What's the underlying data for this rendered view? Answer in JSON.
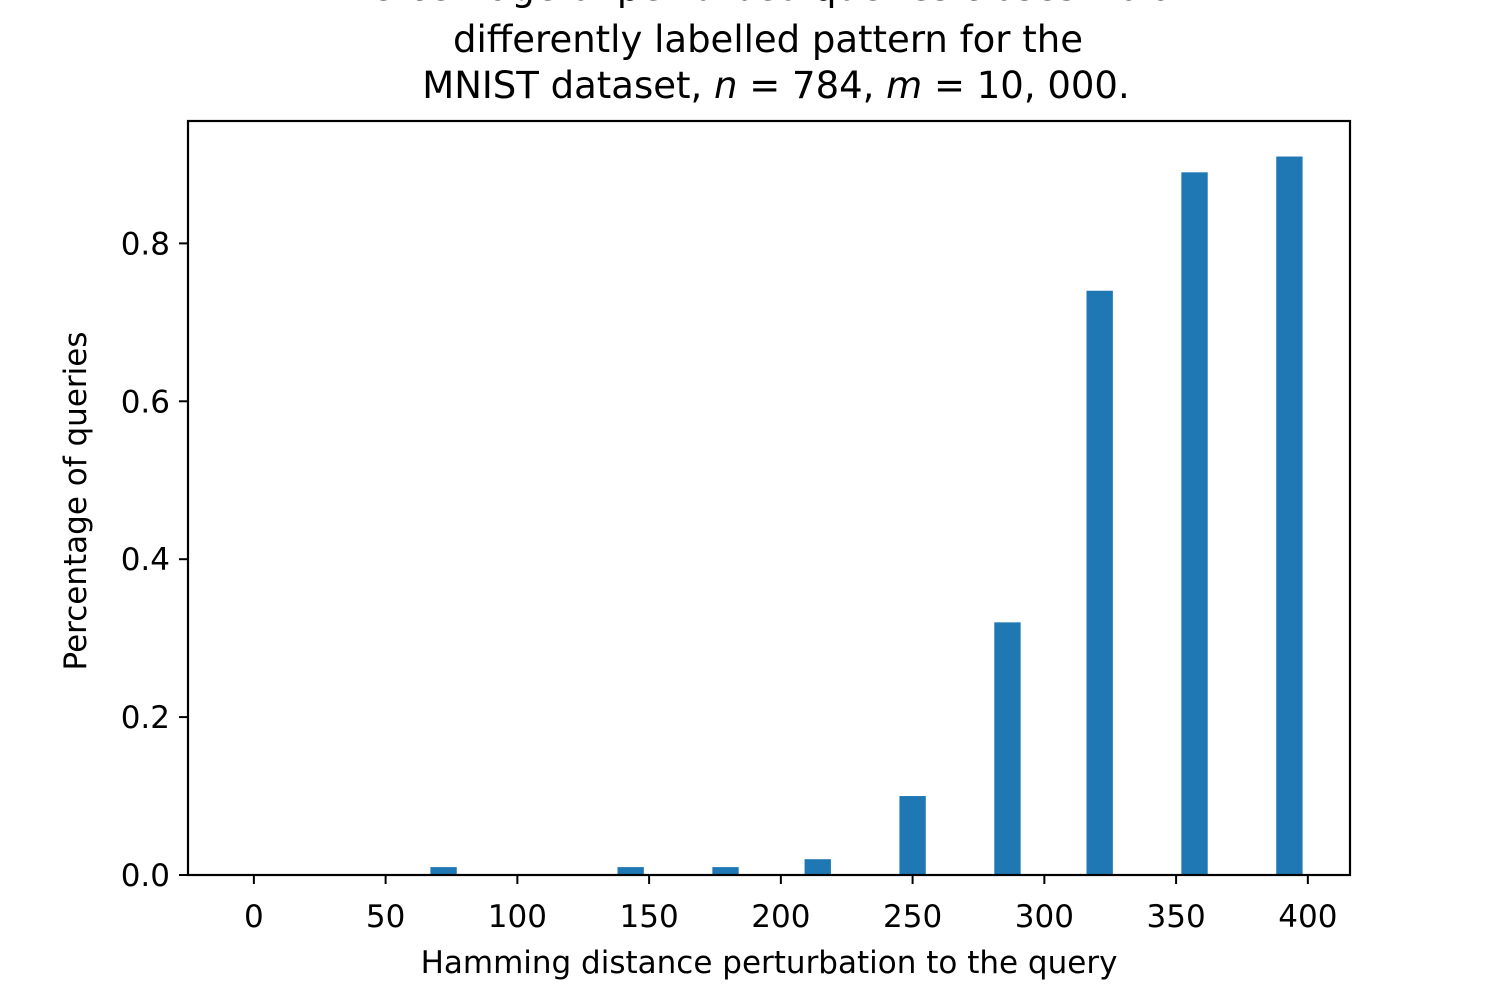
{
  "chart_data": {
    "type": "bar",
    "title_lines": [
      "Percentage of perturbed queries closest to a",
      "differently labelled pattern for the",
      "MNIST dataset, n = 784, m = 10, 000."
    ],
    "xlabel": "Hamming distance perturbation to the query",
    "ylabel": "Percentage of queries",
    "xlim": [
      -25,
      416
    ],
    "ylim": [
      0,
      0.955
    ],
    "xticks": [
      0,
      50,
      100,
      150,
      200,
      250,
      300,
      350,
      400
    ],
    "yticks": [
      0.0,
      0.2,
      0.4,
      0.6,
      0.8
    ],
    "bar_color": "#1f77b4",
    "bar_width": 10,
    "x": [
      72,
      143,
      179,
      214,
      250,
      286,
      321,
      357,
      393
    ],
    "values": [
      0.01,
      0.01,
      0.01,
      0.02,
      0.1,
      0.32,
      0.74,
      0.89,
      0.91
    ],
    "grid": false
  }
}
